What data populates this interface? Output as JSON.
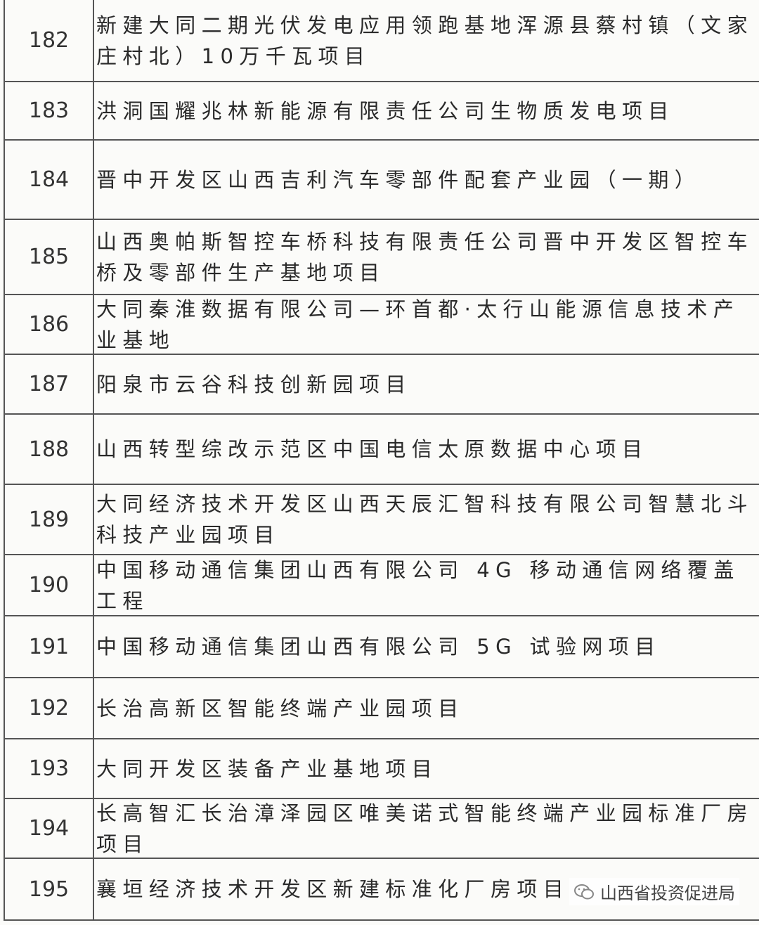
{
  "table": {
    "rows": [
      [
        "182",
        "新建大同二期光伏发电应用领跑基地浑源县蔡村镇（文家庄村北）10万千瓦项目"
      ],
      [
        "183",
        "洪洞国耀兆林新能源有限责任公司生物质发电项目"
      ],
      [
        "184",
        "晋中开发区山西吉利汽车零部件配套产业园（一期）"
      ],
      [
        "185",
        "山西奥帕斯智控车桥科技有限责任公司晋中开发区智控车桥及零部件生产基地项目"
      ],
      [
        "186",
        "大同秦淮数据有限公司—环首都·太行山能源信息技术产业基地"
      ],
      [
        "187",
        "阳泉市云谷科技创新园项目"
      ],
      [
        "188",
        "山西转型综改示范区中国电信太原数据中心项目"
      ],
      [
        "189",
        "大同经济技术开发区山西天辰汇智科技有限公司智慧北斗科技产业园项目"
      ],
      [
        "190",
        "中国移动通信集团山西有限公司 4G 移动通信网络覆盖工程"
      ],
      [
        "191",
        "中国移动通信集团山西有限公司 5G 试验网项目"
      ],
      [
        "192",
        "长治高新区智能终端产业园项目"
      ],
      [
        "193",
        "大同开发区装备产业基地项目"
      ],
      [
        "194",
        "长高智汇长治漳泽园区唯美诺式智能终端产业园标准厂房项目"
      ],
      [
        "195",
        "襄垣经济技术开发区新建标准化厂房项目"
      ]
    ]
  },
  "watermark": "山西省投资促进局"
}
